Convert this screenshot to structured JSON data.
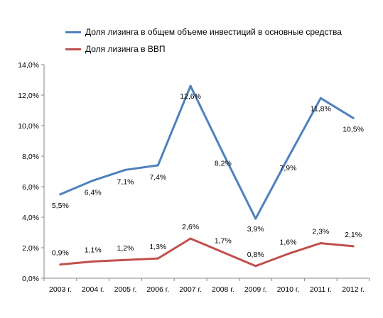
{
  "chart_data": {
    "type": "line",
    "categories": [
      "2003 г.",
      "2004 г.",
      "2005 г.",
      "2006 г.",
      "2007 г.",
      "2008 г.",
      "2009 г.",
      "2010 г.",
      "2011 г.",
      "2012 г."
    ],
    "series": [
      {
        "name": "Доля лизинга в общем объеме инвестиций в основные средства",
        "color": "#4F81BD",
        "values": [
          5.5,
          6.4,
          7.1,
          7.4,
          12.6,
          8.2,
          3.9,
          7.9,
          11.8,
          10.5
        ],
        "labels": [
          "5,5%",
          "6,4%",
          "7,1%",
          "7,4%",
          "12,6%",
          "8,2%",
          "3,9%",
          "7,9%",
          "11,8%",
          "10,5%"
        ]
      },
      {
        "name": "Доля лизинга в ВВП",
        "color": "#C0504D",
        "values": [
          0.9,
          1.1,
          1.2,
          1.3,
          2.6,
          1.7,
          0.8,
          1.6,
          2.3,
          2.1
        ],
        "labels": [
          "0,9%",
          "1,1%",
          "1,2%",
          "1,3%",
          "2,6%",
          "1,7%",
          "0,8%",
          "1,6%",
          "2,3%",
          "2,1%"
        ]
      }
    ],
    "yticks": [
      "0,0%",
      "2,0%",
      "4,0%",
      "6,0%",
      "8,0%",
      "10,0%",
      "12,0%",
      "14,0%"
    ],
    "ylim": [
      0,
      14
    ],
    "legend_position": "top",
    "grid": false
  }
}
